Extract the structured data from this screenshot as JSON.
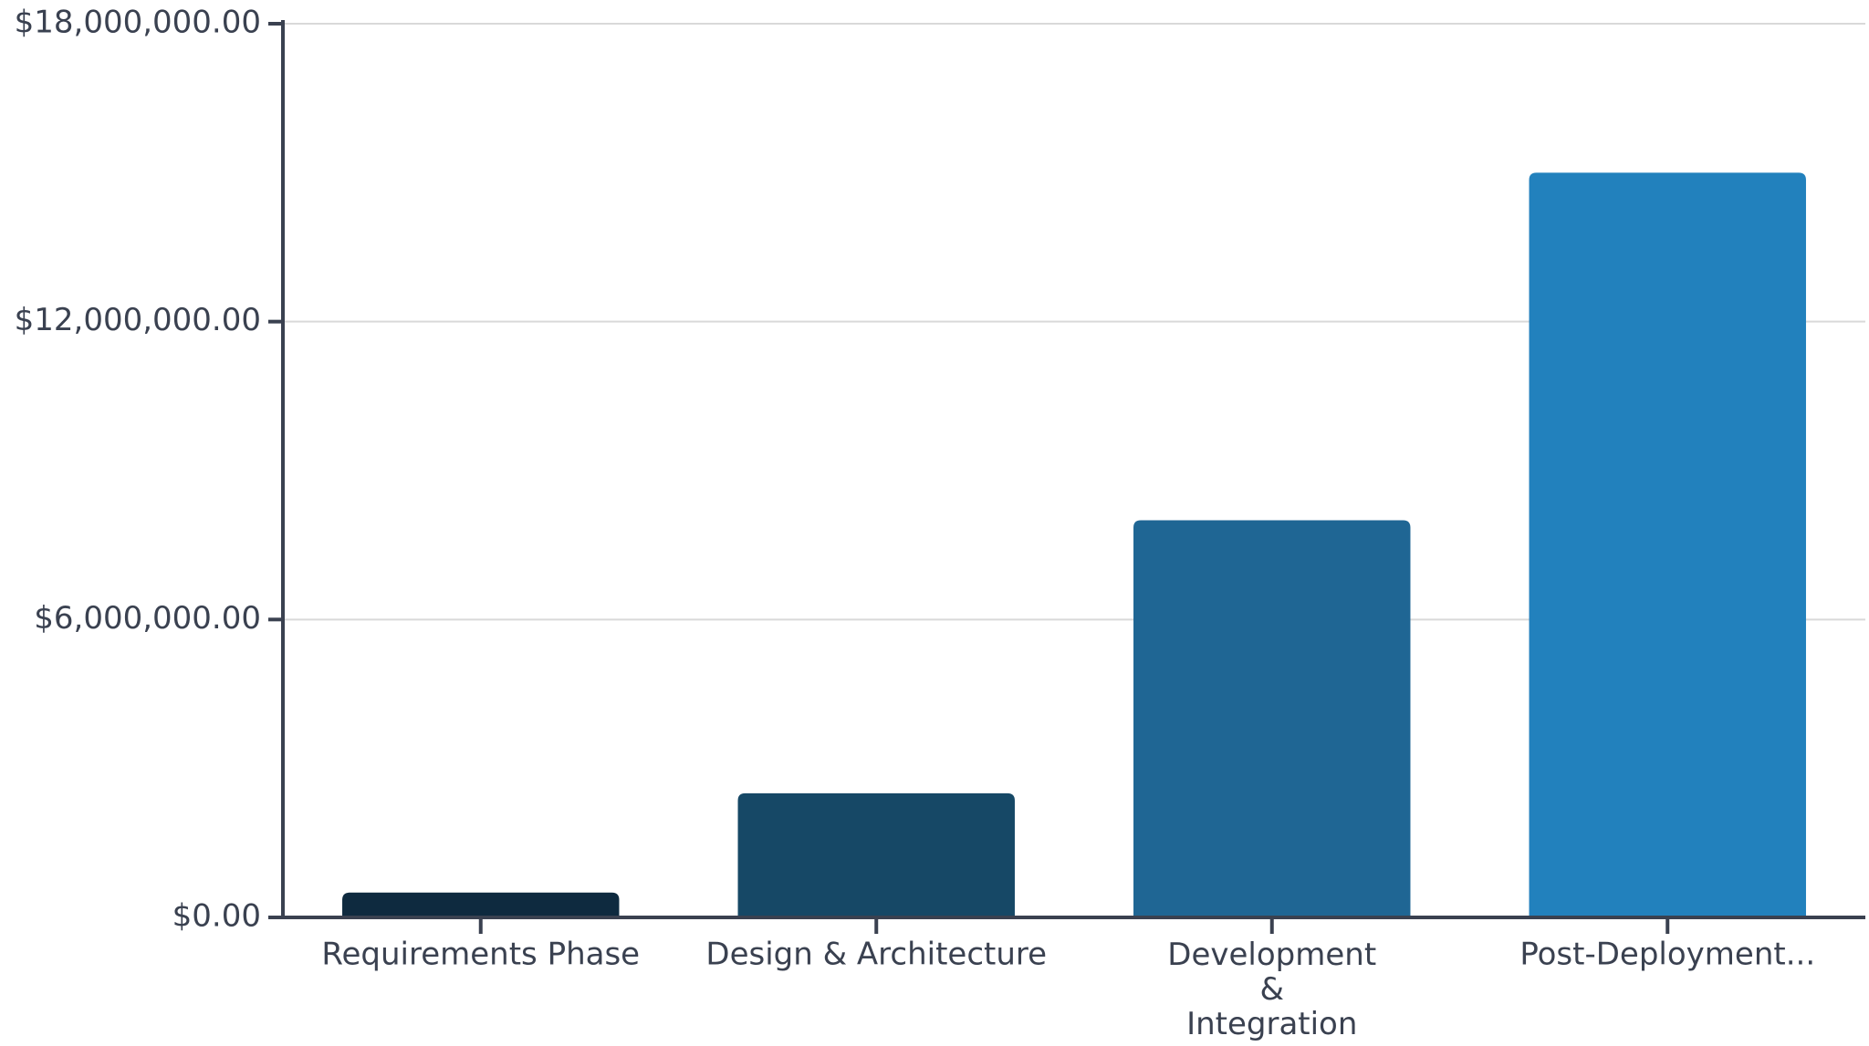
{
  "chart_data": {
    "type": "bar",
    "categories": [
      "Requirements Phase",
      "Design & Architecture",
      "Development & Integration",
      "Post-Deployment..."
    ],
    "values": [
      500000,
      2500000,
      8000000,
      15000000
    ],
    "colors": [
      "#0e2a3f",
      "#164866",
      "#1f6694",
      "#2281bd"
    ],
    "ylim": [
      0,
      18000000
    ],
    "yticks": [
      {
        "value": 0,
        "label": "$0.00"
      },
      {
        "value": 6000000,
        "label": "$6,000,000.00"
      },
      {
        "value": 12000000,
        "label": "$12,000,000.00"
      },
      {
        "value": 18000000,
        "label": "$18,000,000.00"
      }
    ],
    "grid": true
  }
}
